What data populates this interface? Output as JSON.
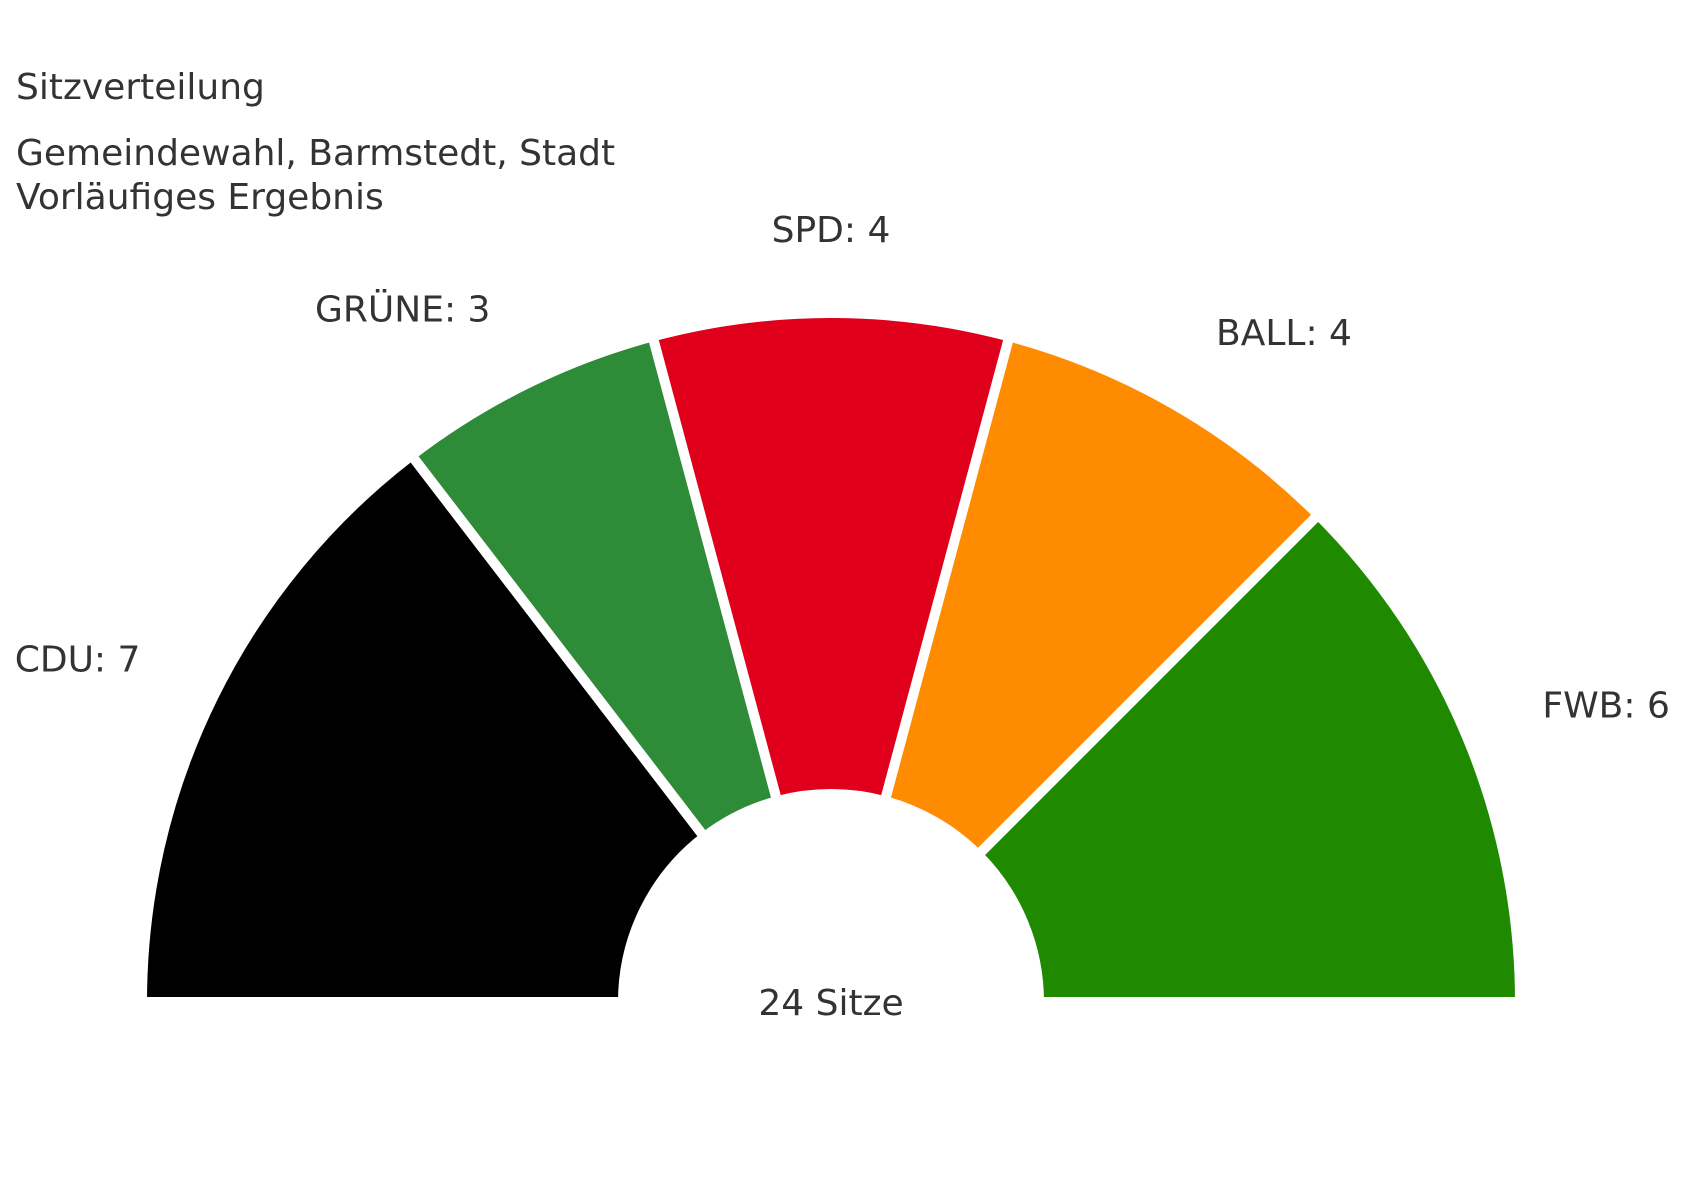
{
  "chart_data": {
    "type": "pie",
    "variant": "semicircle-donut",
    "title": "Sitzverteilung",
    "subtitle": [
      "Gemeindewahl, Barmstedt, Stadt",
      "Vorläufiges Ergebnis"
    ],
    "total_label": "24 Sitze",
    "total": 24,
    "label_format": "{name}: {value}",
    "slices": [
      {
        "name": "CDU",
        "value": 7,
        "color": "#000000"
      },
      {
        "name": "GRÜNE",
        "value": 3,
        "color": "#2e8b37"
      },
      {
        "name": "SPD",
        "value": 4,
        "color": "#e0001b"
      },
      {
        "name": "BALL",
        "value": 4,
        "color": "#ff8c00"
      },
      {
        "name": "FWB",
        "value": 6,
        "color": "#1f8a00"
      }
    ]
  }
}
